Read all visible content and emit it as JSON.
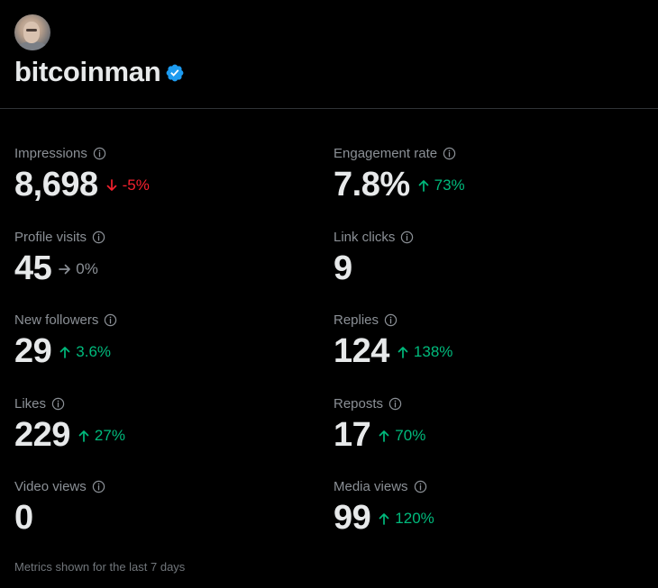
{
  "profile": {
    "username": "bitcoinman",
    "verified": true,
    "avatar_icon": "user-avatar",
    "verified_icon": "verified-badge-icon",
    "verified_color": "#1d9bf0"
  },
  "colors": {
    "background": "#000000",
    "primary_text": "#e7e9ea",
    "secondary_text": "#8b9096",
    "positive": "#00ba7c",
    "negative": "#f4212e",
    "neutral": "#8b9096",
    "divider": "#2f3336"
  },
  "metrics": [
    {
      "label": "Impressions",
      "value": "8,698",
      "change": "-5%",
      "direction": "down"
    },
    {
      "label": "Engagement rate",
      "value": "7.8%",
      "change": "73%",
      "direction": "up"
    },
    {
      "label": "Profile visits",
      "value": "45",
      "change": "0%",
      "direction": "flat"
    },
    {
      "label": "Link clicks",
      "value": "9",
      "change": "",
      "direction": "none"
    },
    {
      "label": "New followers",
      "value": "29",
      "change": "3.6%",
      "direction": "up"
    },
    {
      "label": "Replies",
      "value": "124",
      "change": "138%",
      "direction": "up"
    },
    {
      "label": "Likes",
      "value": "229",
      "change": "27%",
      "direction": "up"
    },
    {
      "label": "Reposts",
      "value": "17",
      "change": "70%",
      "direction": "up"
    },
    {
      "label": "Video views",
      "value": "0",
      "change": "",
      "direction": "none"
    },
    {
      "label": "Media views",
      "value": "99",
      "change": "120%",
      "direction": "up"
    }
  ],
  "footer": {
    "note": "Metrics shown for the last 7 days"
  }
}
